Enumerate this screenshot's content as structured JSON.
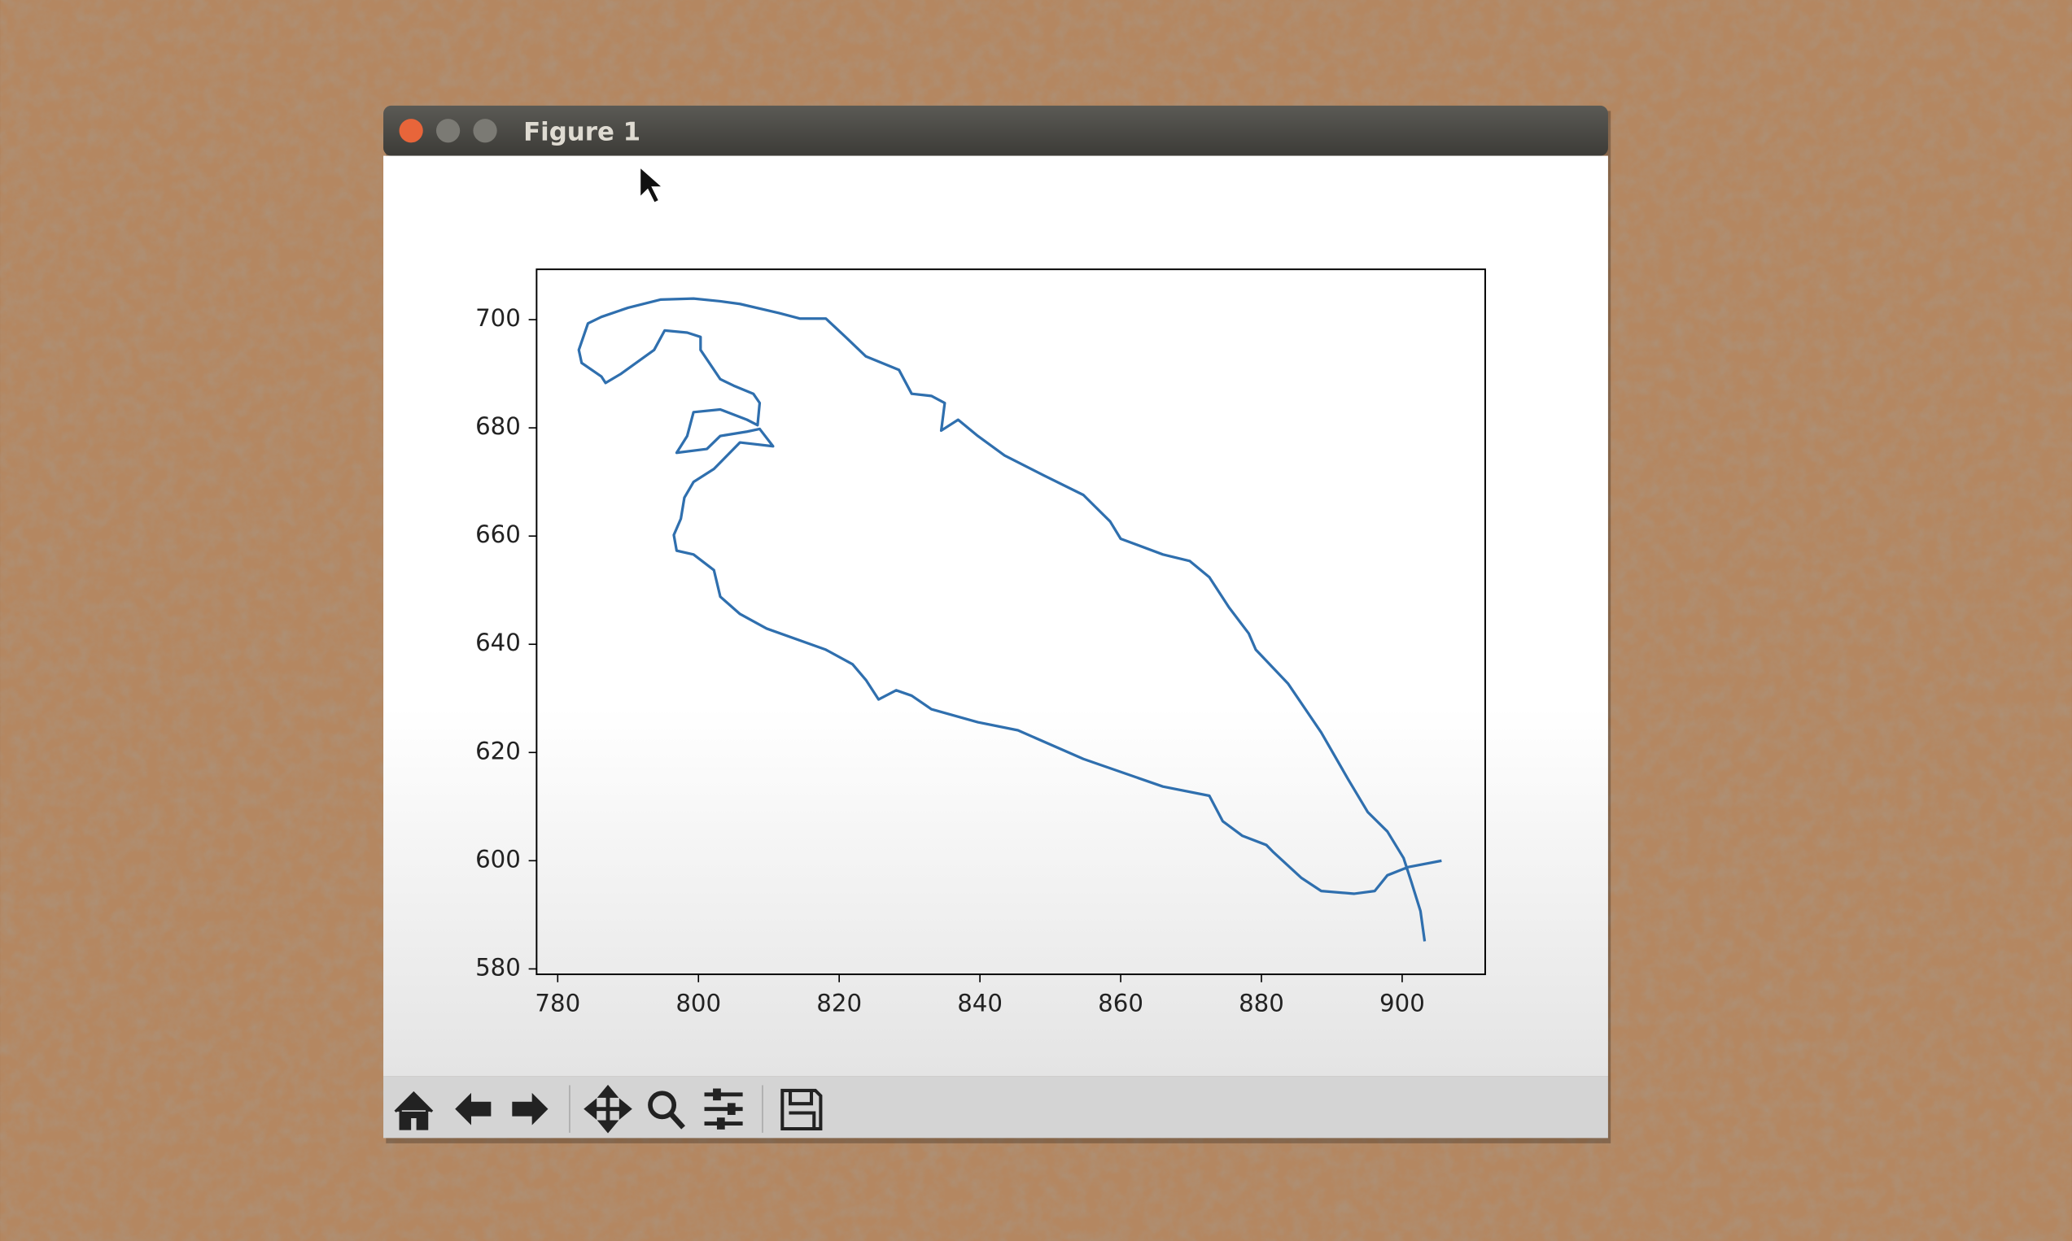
{
  "window_title": "Figure 1",
  "chart_data": {
    "type": "line",
    "color": "#2f6fae",
    "grid": false,
    "xlim": [
      777.0,
      911.8
    ],
    "ylim": [
      579.0,
      709.3
    ],
    "xticks": [
      780,
      800,
      820,
      840,
      860,
      880,
      900
    ],
    "yticks": [
      580,
      600,
      620,
      640,
      660,
      680,
      700
    ],
    "x": [
      905.6,
      900.8,
      897.9,
      896.1,
      893.2,
      888.5,
      885.7,
      881.6,
      880.7,
      877.3,
      874.5,
      872.6,
      866.0,
      854.7,
      845.4,
      839.7,
      833.1,
      830.3,
      828.1,
      825.6,
      823.8,
      821.9,
      818.1,
      809.7,
      805.9,
      803.1,
      802.2,
      799.3,
      796.9,
      796.5,
      797.5,
      798.0,
      799.3,
      802.2,
      805.9,
      810.6,
      808.7,
      806.9,
      803.1,
      801.2,
      796.9,
      798.4,
      799.3,
      803.1,
      806.9,
      808.4,
      808.7,
      807.8,
      805.0,
      803.1,
      800.3,
      800.3,
      798.4,
      795.2,
      793.7,
      789.0,
      786.8,
      786.2,
      783.4,
      783.0,
      784.3,
      786.2,
      790.0,
      794.6,
      799.3,
      803.1,
      805.9,
      811.5,
      814.4,
      818.1,
      820.9,
      823.8,
      828.5,
      830.3,
      833.1,
      835.0,
      834.5,
      836.9,
      839.7,
      843.5,
      849.1,
      854.7,
      858.5,
      860.0,
      866.0,
      869.8,
      872.6,
      875.4,
      878.2,
      879.2,
      883.8,
      888.5,
      892.3,
      895.1,
      897.9,
      900.2,
      901.3,
      902.6,
      903.2
    ],
    "values": [
      600.0,
      598.8,
      597.3,
      594.4,
      593.9,
      594.4,
      596.8,
      601.7,
      602.9,
      604.6,
      607.3,
      612.0,
      613.7,
      618.8,
      624.1,
      625.6,
      628.0,
      630.5,
      631.5,
      629.8,
      633.4,
      636.3,
      639.0,
      642.9,
      645.6,
      648.8,
      653.7,
      656.6,
      657.3,
      660.2,
      663.2,
      667.1,
      670.0,
      672.4,
      677.3,
      676.6,
      679.8,
      679.3,
      678.5,
      676.1,
      675.4,
      678.5,
      682.9,
      683.4,
      681.5,
      680.5,
      684.6,
      686.3,
      687.8,
      689.0,
      694.4,
      696.8,
      697.6,
      698.0,
      694.4,
      690.0,
      688.3,
      689.5,
      692.0,
      694.4,
      699.3,
      700.5,
      702.2,
      703.7,
      703.9,
      703.4,
      702.9,
      701.2,
      700.2,
      700.2,
      696.8,
      693.2,
      690.7,
      686.3,
      685.9,
      684.6,
      679.5,
      681.5,
      678.5,
      674.9,
      671.2,
      667.6,
      662.7,
      659.5,
      656.6,
      655.4,
      652.4,
      646.8,
      642.0,
      639.0,
      632.7,
      623.7,
      615.1,
      609.0,
      605.4,
      600.5,
      596.1,
      590.7,
      585.1
    ]
  }
}
